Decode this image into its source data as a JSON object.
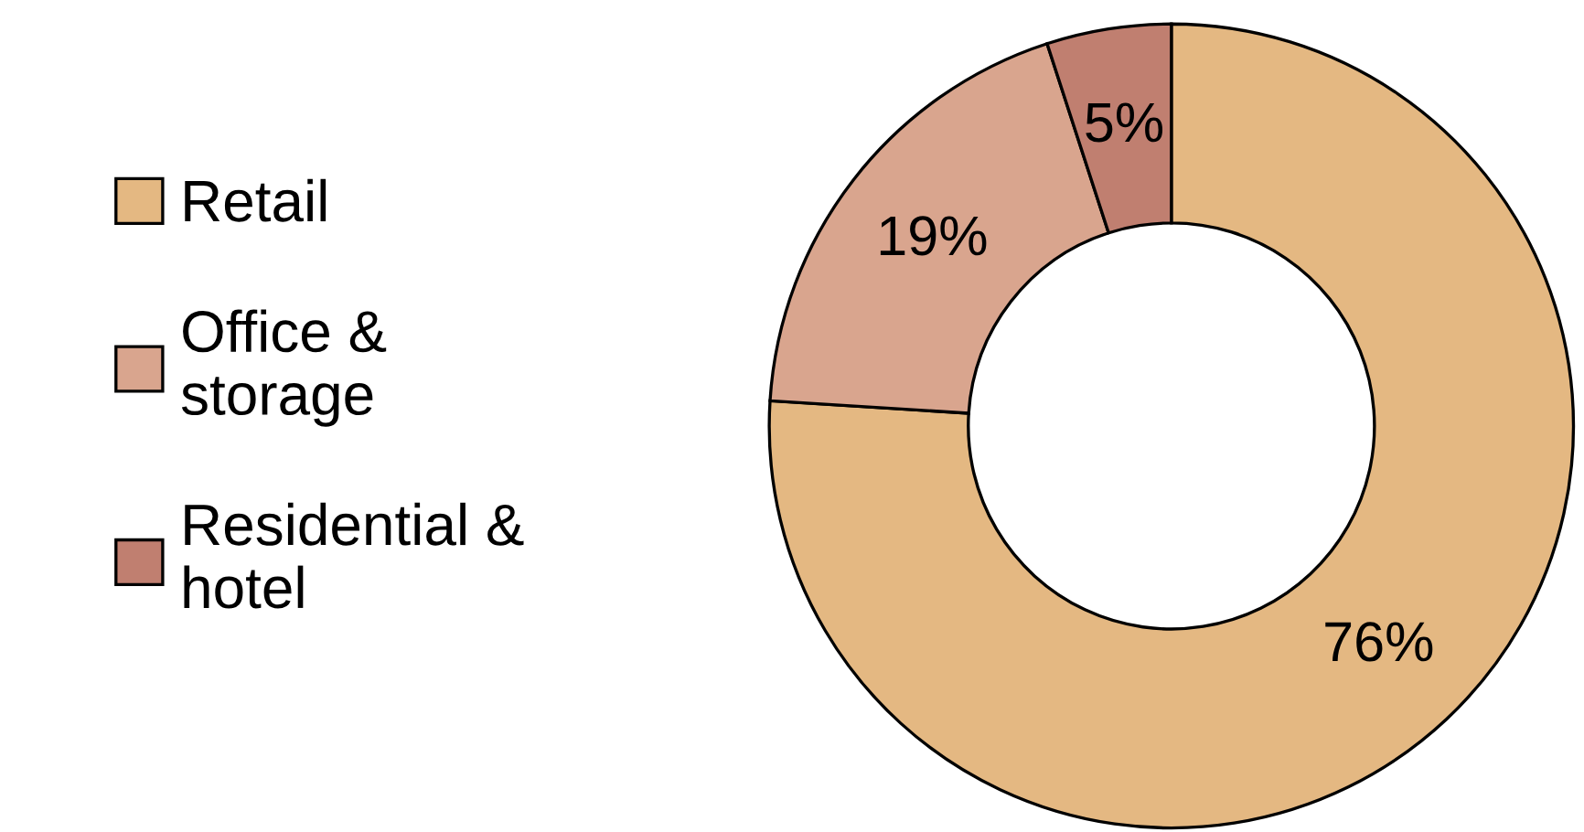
{
  "chart_data": {
    "type": "donut",
    "categories": [
      "Retail",
      "Office &\nstorage",
      "Residential &\nhotel"
    ],
    "values": [
      76,
      19,
      5
    ],
    "colors": [
      "#e4b882",
      "#d9a58e",
      "#c07f70"
    ],
    "value_labels": [
      "76%",
      "19%",
      "5%"
    ],
    "legend": "left"
  }
}
